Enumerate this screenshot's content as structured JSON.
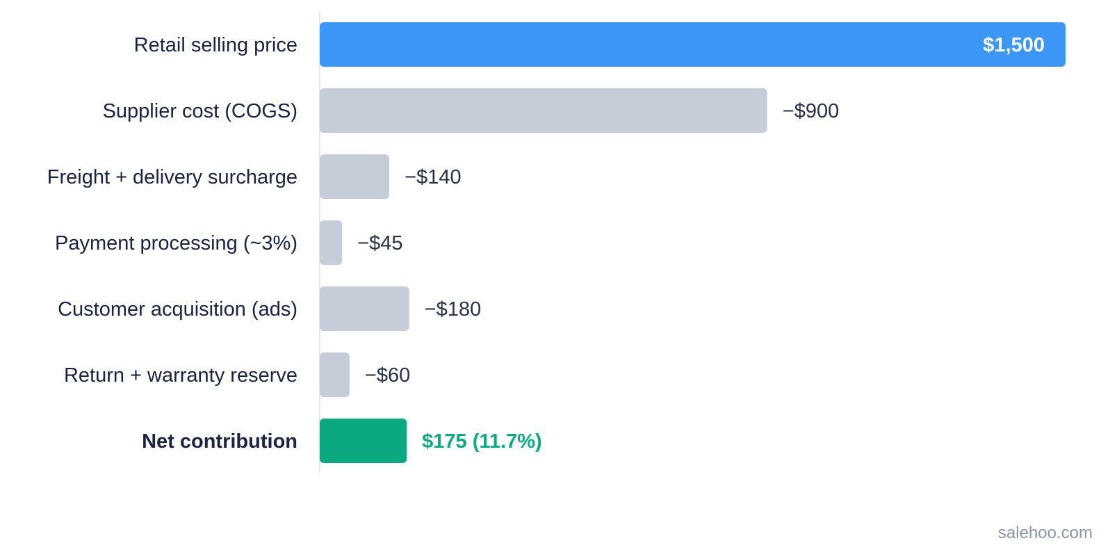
{
  "chart_data": {
    "type": "bar",
    "orientation": "horizontal",
    "categories": [
      "Retail selling price",
      "Supplier cost (COGS)",
      "Freight + delivery surcharge",
      "Payment processing (~3%)",
      "Customer acquisition (ads)",
      "Return + warranty reserve",
      "Net contribution"
    ],
    "values": [
      1500,
      -900,
      -140,
      -45,
      -180,
      -60,
      175
    ],
    "value_labels": [
      "$1,500",
      "−$900",
      "−$140",
      "−$45",
      "−$180",
      "−$60",
      "$175 (11.7%)"
    ],
    "bar_colors": [
      "#3b96f5",
      "#c6ccd8",
      "#c6ccd8",
      "#c6ccd8",
      "#c6ccd8",
      "#c6ccd8",
      "#0aa981"
    ],
    "label_colors": [
      "#ffffff",
      "#2a3145",
      "#2a3145",
      "#2a3145",
      "#2a3145",
      "#2a3145",
      "#0aa981"
    ],
    "label_placement": [
      "inside-end",
      "outside",
      "outside",
      "outside",
      "outside",
      "outside",
      "outside"
    ],
    "bold_rows": [
      false,
      false,
      false,
      false,
      false,
      false,
      true
    ],
    "xlim": [
      0,
      1500
    ],
    "title": "",
    "xlabel": "",
    "ylabel": "",
    "grid": false,
    "legend": "none",
    "axis_line_color": "#e3e6ec"
  },
  "footer": {
    "source": "salehoo.com"
  }
}
